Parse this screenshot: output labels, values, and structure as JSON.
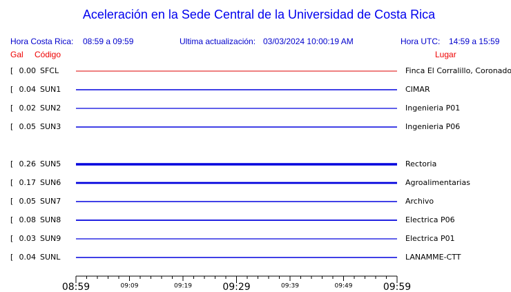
{
  "header": {
    "title": "Aceleración en la Sede Central de la Universidad de Costa Rica",
    "local_label": "Hora Costa Rica:",
    "local_range": "08:59 a 09:59",
    "update_label": "Ultima actualización:",
    "update_time": "03/03/2024 10:00:19 AM",
    "utc_label": "Hora UTC:",
    "utc_range": "14:59 a 15:59",
    "gal_label": "Gal",
    "code_label": "Código",
    "place_label": "Lugar"
  },
  "stations": [
    {
      "gal": "0.00",
      "code": "SFCL",
      "place": "Finca El Corralillo, Coronado",
      "color": "#dd0000",
      "slot": 0
    },
    {
      "gal": "0.04",
      "code": "SUN1",
      "place": "CIMAR",
      "color": "#0000dd",
      "slot": 1
    },
    {
      "gal": "0.02",
      "code": "SUN2",
      "place": "Ingenieria P01",
      "color": "#0000dd",
      "slot": 2
    },
    {
      "gal": "0.05",
      "code": "SUN3",
      "place": "Ingenieria P06",
      "color": "#0000dd",
      "slot": 3
    },
    {
      "gal": "0.26",
      "code": "SUN5",
      "place": "Rectoria",
      "color": "#0000dd",
      "slot": 5
    },
    {
      "gal": "0.17",
      "code": "SUN6",
      "place": "Agroalimentarias",
      "color": "#0000dd",
      "slot": 6
    },
    {
      "gal": "0.05",
      "code": "SUN7",
      "place": "Archivo",
      "color": "#0000dd",
      "slot": 7
    },
    {
      "gal": "0.08",
      "code": "SUN8",
      "place": "Electrica P06",
      "color": "#0000dd",
      "slot": 8
    },
    {
      "gal": "0.03",
      "code": "SUN9",
      "place": "Electrica P01",
      "color": "#0000dd",
      "slot": 9
    },
    {
      "gal": "0.04",
      "code": "SUNL",
      "place": "LANAMME-CTT",
      "color": "#0000dd",
      "slot": 10
    }
  ],
  "time_axis": [
    {
      "label": "08:59",
      "major": true
    },
    {
      "label": "09:09",
      "major": false
    },
    {
      "label": "09:19",
      "major": false
    },
    {
      "label": "09:29",
      "major": true
    },
    {
      "label": "09:39",
      "major": false
    },
    {
      "label": "09:49",
      "major": false
    },
    {
      "label": "09:59",
      "major": true
    }
  ]
}
